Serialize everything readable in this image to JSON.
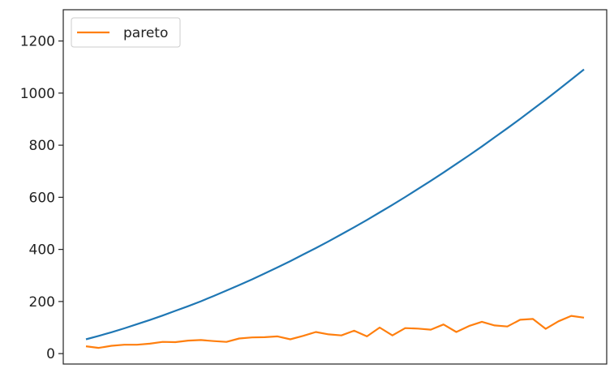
{
  "chart_data": {
    "type": "line",
    "x": [
      0,
      1,
      2,
      3,
      4,
      5,
      6,
      7,
      8,
      9,
      10,
      11,
      12,
      13,
      14,
      15,
      16,
      17,
      18,
      19,
      20,
      21,
      22,
      23,
      24,
      25,
      26,
      27,
      28,
      29,
      30,
      31,
      32,
      33,
      34,
      35,
      36,
      37,
      38,
      39
    ],
    "ylim": [
      -40,
      1320
    ],
    "yticks": [
      0,
      200,
      400,
      600,
      800,
      1000,
      1200
    ],
    "ytick_labels": [
      "0",
      "200",
      "400",
      "600",
      "800",
      "1000",
      "1200"
    ],
    "grid": false,
    "legend": {
      "position": "top-left"
    },
    "series": [
      {
        "color": "#1f77b4",
        "values": [
          55,
          68,
          82,
          97,
          113,
          129,
          146,
          164,
          182,
          201,
          221,
          242,
          263,
          285,
          308,
          331,
          355,
          380,
          405,
          431,
          458,
          485,
          513,
          542,
          571,
          601,
          632,
          663,
          695,
          728,
          761,
          795,
          830,
          865,
          901,
          938,
          975,
          1013,
          1052,
          1091
        ]
      },
      {
        "name": "pareto",
        "color": "#ff7f0e",
        "values": [
          28,
          22,
          30,
          34,
          34,
          38,
          45,
          44,
          50,
          52,
          48,
          45,
          58,
          62,
          63,
          66,
          55,
          68,
          83,
          74,
          70,
          88,
          66,
          100,
          70,
          98,
          96,
          92,
          112,
          83,
          106,
          122,
          108,
          104,
          130,
          133,
          95,
          124,
          145,
          138
        ]
      }
    ]
  }
}
